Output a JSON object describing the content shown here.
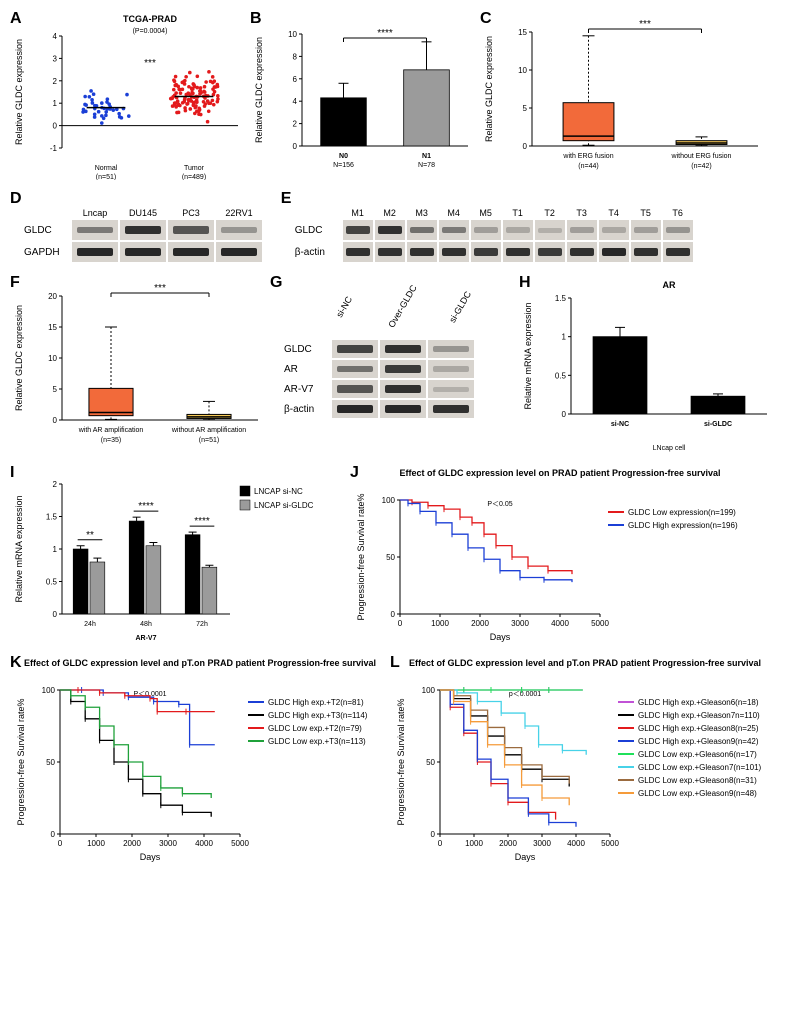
{
  "A": {
    "label": "A",
    "title": "TCGA-PRAD",
    "subtitle": "(P=0.0004)",
    "sig": "***",
    "ylabel": "Relative GLDC expression",
    "ylim": [
      -1,
      4
    ],
    "yticks": [
      -1,
      0,
      1,
      2,
      3,
      4
    ],
    "groups": [
      {
        "name": "Normal",
        "n": "(n=51)",
        "color": "#1b3fd6",
        "mean": 0.8,
        "spread": 0.75,
        "count": 40
      },
      {
        "name": "Tumor",
        "n": "(n=489)",
        "color": "#e31a1c",
        "mean": 1.3,
        "spread": 0.9,
        "count": 120
      }
    ]
  },
  "B": {
    "label": "B",
    "sig": "****",
    "ylabel": "Relative GLDC expression",
    "ylim": [
      0,
      10
    ],
    "yticks": [
      0,
      2,
      4,
      6,
      8,
      10
    ],
    "bars": [
      {
        "name": "N0",
        "n": "N=156",
        "value": 4.3,
        "err": 1.3,
        "color": "#000000"
      },
      {
        "name": "N1",
        "n": "N=78",
        "value": 6.8,
        "err": 2.5,
        "color": "#9b9b9b"
      }
    ]
  },
  "C": {
    "label": "C",
    "sig": "***",
    "ylabel": "Relative GLDC expression",
    "ylim": [
      0,
      15
    ],
    "yticks": [
      0,
      5,
      10,
      15
    ],
    "boxes": [
      {
        "name": "with ERG fusion",
        "n": "(n=44)",
        "color": "#f26a3a",
        "q1": 0.7,
        "med": 1.3,
        "q3": 5.7,
        "whiskLo": 0.1,
        "whiskHi": 14.5
      },
      {
        "name": "without ERG fusion",
        "n": "(n=42)",
        "color": "#f6c957",
        "q1": 0.2,
        "med": 0.4,
        "q3": 0.7,
        "whiskLo": 0.05,
        "whiskHi": 1.2
      }
    ]
  },
  "D": {
    "label": "D",
    "lanes": [
      "Lncap",
      "DU145",
      "PC3",
      "22RV1"
    ],
    "rows": [
      {
        "label": "GLDC",
        "intensity": [
          0.5,
          0.9,
          0.7,
          0.35
        ]
      },
      {
        "label": "GAPDH",
        "intensity": [
          0.95,
          0.95,
          0.95,
          0.95
        ]
      }
    ],
    "laneW": 46,
    "laneH": 20
  },
  "E": {
    "label": "E",
    "lanes": [
      "M1",
      "M2",
      "M3",
      "M4",
      "M5",
      "T1",
      "T2",
      "T3",
      "T4",
      "T5",
      "T6"
    ],
    "rows": [
      {
        "label": "GLDC",
        "intensity": [
          0.8,
          0.9,
          0.55,
          0.5,
          0.3,
          0.25,
          0.2,
          0.3,
          0.25,
          0.3,
          0.35
        ]
      },
      {
        "label": "β-actin",
        "intensity": [
          0.9,
          0.9,
          0.9,
          0.9,
          0.85,
          0.9,
          0.85,
          0.9,
          0.95,
          0.9,
          0.9
        ]
      }
    ],
    "laneW": 30,
    "laneH": 20
  },
  "F": {
    "label": "F",
    "sig": "***",
    "ylabel": "Relative GLDC expression",
    "ylim": [
      0,
      20
    ],
    "yticks": [
      0,
      5,
      10,
      15,
      20
    ],
    "boxes": [
      {
        "name": "with AR amplification",
        "n": "(n=35)",
        "color": "#f26a3a",
        "q1": 0.7,
        "med": 1.2,
        "q3": 5.1,
        "whiskLo": 0.1,
        "whiskHi": 15.0
      },
      {
        "name": "without AR amplification",
        "n": "(n=51)",
        "color": "#f6c957",
        "q1": 0.25,
        "med": 0.5,
        "q3": 0.9,
        "whiskLo": 0.05,
        "whiskHi": 3.0
      }
    ]
  },
  "G": {
    "label": "G",
    "lanes": [
      "si-NC",
      "Over-GLDC",
      "si-GLDC"
    ],
    "rows": [
      {
        "label": "GLDC",
        "intensity": [
          0.8,
          0.9,
          0.35
        ]
      },
      {
        "label": "AR",
        "intensity": [
          0.55,
          0.85,
          0.25
        ]
      },
      {
        "label": "AR-V7",
        "intensity": [
          0.7,
          0.9,
          0.2
        ]
      },
      {
        "label": "β-actin",
        "intensity": [
          0.95,
          0.95,
          0.9
        ]
      }
    ],
    "laneW": 46,
    "laneH": 18,
    "rotateHeaders": true
  },
  "H": {
    "label": "H",
    "title": "AR",
    "ylabel": "Relative mRNA expression",
    "subtitle": "LNcap cell",
    "ylim": [
      0,
      1.5
    ],
    "yticks": [
      0,
      0.5,
      1.0,
      1.5
    ],
    "bars": [
      {
        "name": "si-NC",
        "value": 1.0,
        "err": 0.12,
        "color": "#000000"
      },
      {
        "name": "si-GLDC",
        "value": 0.23,
        "err": 0.03,
        "color": "#000000"
      }
    ]
  },
  "I": {
    "label": "I",
    "ylabel": "Relative mRNA expression",
    "xlabel": "AR-V7",
    "ylim": [
      0,
      2.0
    ],
    "yticks": [
      0,
      0.5,
      1.0,
      1.5,
      2.0
    ],
    "legend": [
      {
        "label": "LNCAP si-NC",
        "color": "#000000"
      },
      {
        "label": "LNCAP si-GLDC",
        "color": "#9b9b9b"
      }
    ],
    "groups": [
      {
        "cat": "24h",
        "sig": "**",
        "bars": [
          {
            "value": 1.0,
            "err": 0.05,
            "color": "#000000"
          },
          {
            "value": 0.8,
            "err": 0.06,
            "color": "#9b9b9b"
          }
        ]
      },
      {
        "cat": "48h",
        "sig": "****",
        "bars": [
          {
            "value": 1.43,
            "err": 0.06,
            "color": "#000000"
          },
          {
            "value": 1.05,
            "err": 0.05,
            "color": "#9b9b9b"
          }
        ]
      },
      {
        "cat": "72h",
        "sig": "****",
        "bars": [
          {
            "value": 1.22,
            "err": 0.04,
            "color": "#000000"
          },
          {
            "value": 0.72,
            "err": 0.03,
            "color": "#9b9b9b"
          }
        ]
      }
    ]
  },
  "J": {
    "label": "J",
    "title": "Effect of GLDC expression level on PRAD patient Progression-free survival",
    "pval": "P＜0.05",
    "xlabel": "Days",
    "ylabel": "Progression-free Survival rate%",
    "xlim": [
      0,
      5000
    ],
    "xticks": [
      0,
      1000,
      2000,
      3000,
      4000,
      5000
    ],
    "ylim": [
      0,
      100
    ],
    "yticks": [
      0,
      50,
      100
    ],
    "series": [
      {
        "label": "GLDC Low expression(n=199)",
        "color": "#e31a1c",
        "points": [
          [
            0,
            100
          ],
          [
            300,
            98
          ],
          [
            700,
            95
          ],
          [
            1100,
            92
          ],
          [
            1500,
            85
          ],
          [
            1800,
            80
          ],
          [
            2100,
            70
          ],
          [
            2400,
            60
          ],
          [
            2800,
            50
          ],
          [
            3200,
            42
          ],
          [
            3700,
            38
          ],
          [
            4300,
            35
          ]
        ]
      },
      {
        "label": "GLDC High expression(n=196)",
        "color": "#1b3fd6",
        "points": [
          [
            0,
            100
          ],
          [
            200,
            97
          ],
          [
            500,
            90
          ],
          [
            900,
            80
          ],
          [
            1300,
            70
          ],
          [
            1700,
            58
          ],
          [
            2100,
            48
          ],
          [
            2500,
            38
          ],
          [
            3000,
            32
          ],
          [
            3600,
            30
          ],
          [
            4300,
            28
          ]
        ]
      }
    ]
  },
  "K": {
    "label": "K",
    "title": "Effect of GLDC expression level and pT.on PRAD patient Progression-free survival",
    "pval": "P＜0.0001",
    "xlabel": "Days",
    "ylabel": "Progression-free Survival rate%",
    "xlim": [
      0,
      5000
    ],
    "xticks": [
      0,
      1000,
      2000,
      3000,
      4000,
      5000
    ],
    "ylim": [
      0,
      100
    ],
    "yticks": [
      0,
      50,
      100
    ],
    "series": [
      {
        "label": "GLDC High exp.+T2(n=81)",
        "color": "#1b3fd6",
        "points": [
          [
            0,
            100
          ],
          [
            600,
            100
          ],
          [
            1200,
            98
          ],
          [
            1900,
            95
          ],
          [
            2600,
            92
          ],
          [
            3300,
            90
          ],
          [
            3600,
            62
          ],
          [
            4300,
            62
          ]
        ]
      },
      {
        "label": "GLDC High exp.+T3(n=114)",
        "color": "#000000",
        "points": [
          [
            0,
            100
          ],
          [
            300,
            92
          ],
          [
            700,
            80
          ],
          [
            1100,
            65
          ],
          [
            1500,
            50
          ],
          [
            1900,
            38
          ],
          [
            2300,
            28
          ],
          [
            2800,
            20
          ],
          [
            3400,
            15
          ],
          [
            4200,
            12
          ]
        ]
      },
      {
        "label": "GLDC Low exp.+T2(n=79)",
        "color": "#e31a1c",
        "points": [
          [
            0,
            100
          ],
          [
            500,
            100
          ],
          [
            1100,
            98
          ],
          [
            1800,
            96
          ],
          [
            2500,
            94
          ],
          [
            2700,
            85
          ],
          [
            3500,
            85
          ],
          [
            4300,
            85
          ]
        ]
      },
      {
        "label": "GLDC Low exp.+T3(n=113)",
        "color": "#1fa13a",
        "points": [
          [
            0,
            100
          ],
          [
            300,
            96
          ],
          [
            700,
            88
          ],
          [
            1100,
            75
          ],
          [
            1500,
            62
          ],
          [
            1900,
            50
          ],
          [
            2300,
            40
          ],
          [
            2800,
            32
          ],
          [
            3400,
            28
          ],
          [
            4200,
            25
          ]
        ]
      }
    ]
  },
  "L": {
    "label": "L",
    "title": "Effect of GLDC expression level and pT.on PRAD patient Progression-free survival",
    "pval": "p＜0.0001",
    "xlabel": "Days",
    "ylabel": "Progression-free Survival rate%",
    "xlim": [
      0,
      5000
    ],
    "xticks": [
      0,
      1000,
      2000,
      3000,
      4000,
      5000
    ],
    "ylim": [
      0,
      100
    ],
    "yticks": [
      0,
      50,
      100
    ],
    "series": [
      {
        "label": "GLDC High exp.+Gleason6(n=18)",
        "color": "#c152d6",
        "points": [
          [
            0,
            100
          ],
          [
            700,
            100
          ],
          [
            1500,
            100
          ],
          [
            2400,
            100
          ],
          [
            3200,
            100
          ],
          [
            4200,
            100
          ]
        ]
      },
      {
        "label": "GLDC High exp.+Gleason7n=110)",
        "color": "#000000",
        "points": [
          [
            0,
            100
          ],
          [
            400,
            94
          ],
          [
            900,
            82
          ],
          [
            1400,
            68
          ],
          [
            1900,
            55
          ],
          [
            2400,
            45
          ],
          [
            3000,
            38
          ],
          [
            3800,
            33
          ]
        ]
      },
      {
        "label": "GLDC High exp.+Gleason8(n=25)",
        "color": "#e31a1c",
        "points": [
          [
            0,
            100
          ],
          [
            300,
            88
          ],
          [
            700,
            70
          ],
          [
            1100,
            50
          ],
          [
            1500,
            35
          ],
          [
            2000,
            22
          ],
          [
            2600,
            15
          ],
          [
            3400,
            10
          ]
        ]
      },
      {
        "label": "GLDC High exp.+Gleason9(n=42)",
        "color": "#1b3fd6",
        "points": [
          [
            0,
            100
          ],
          [
            300,
            90
          ],
          [
            700,
            72
          ],
          [
            1100,
            52
          ],
          [
            1500,
            38
          ],
          [
            2000,
            25
          ],
          [
            2600,
            14
          ],
          [
            3200,
            8
          ],
          [
            4000,
            5
          ]
        ]
      },
      {
        "label": "GLDC Low exp.+Gleason6(n=17)",
        "color": "#1fe05a",
        "points": [
          [
            0,
            100
          ],
          [
            700,
            100
          ],
          [
            1500,
            100
          ],
          [
            2400,
            100
          ],
          [
            3200,
            100
          ],
          [
            4200,
            100
          ]
        ]
      },
      {
        "label": "GLDC Low exp.+Gleason7(n=101)",
        "color": "#47d2e8",
        "points": [
          [
            0,
            100
          ],
          [
            500,
            98
          ],
          [
            1100,
            92
          ],
          [
            1800,
            84
          ],
          [
            2500,
            75
          ],
          [
            2900,
            62
          ],
          [
            3600,
            58
          ],
          [
            4300,
            55
          ]
        ]
      },
      {
        "label": "GLDC Low exp.+Gleason8(n=31)",
        "color": "#9b6b3f",
        "points": [
          [
            0,
            100
          ],
          [
            400,
            96
          ],
          [
            900,
            86
          ],
          [
            1400,
            74
          ],
          [
            1900,
            60
          ],
          [
            2400,
            48
          ],
          [
            3000,
            40
          ],
          [
            3800,
            35
          ]
        ]
      },
      {
        "label": "GLDC Low exp.+Gleason9(n=48)",
        "color": "#f59b3a",
        "points": [
          [
            0,
            100
          ],
          [
            400,
            92
          ],
          [
            900,
            78
          ],
          [
            1400,
            62
          ],
          [
            1900,
            48
          ],
          [
            2400,
            34
          ],
          [
            3000,
            25
          ],
          [
            3800,
            20
          ]
        ]
      }
    ]
  }
}
